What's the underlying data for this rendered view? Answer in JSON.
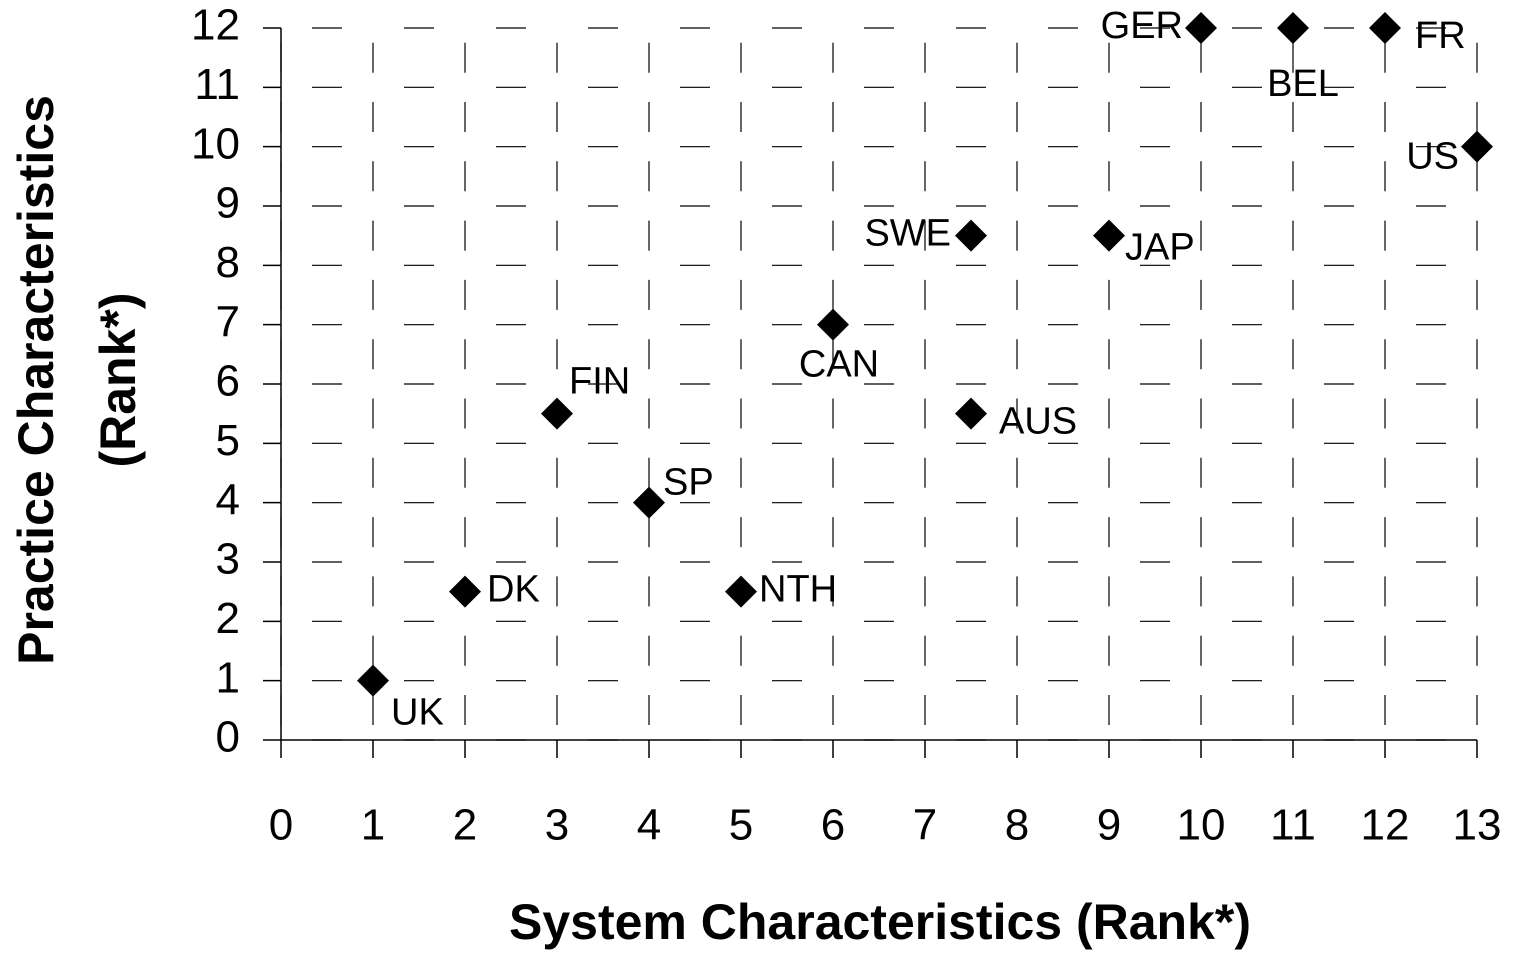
{
  "chart_data": {
    "type": "scatter",
    "xlabel": "System Characteristics (Rank*)",
    "ylabel": [
      "Practice Characteristics",
      "(Rank*)"
    ],
    "x": [
      1,
      2,
      3,
      4,
      5,
      6,
      7.5,
      7.5,
      9,
      10,
      11,
      12,
      13
    ],
    "values": [
      1,
      2.5,
      5.5,
      4,
      2.5,
      7,
      8.5,
      5.5,
      8.5,
      12,
      12,
      12,
      10
    ],
    "point_labels": [
      "UK",
      "DK",
      "FIN",
      "SP",
      "NTH",
      "CAN",
      "SWE",
      "AUS",
      "JAP",
      "GER",
      "BEL",
      "FR",
      "US"
    ],
    "color": "#000000",
    "xlim": [
      0,
      13
    ],
    "xticks": [
      0,
      1,
      2,
      3,
      4,
      5,
      6,
      7,
      8,
      9,
      10,
      11,
      12,
      13
    ],
    "ylim": [
      0,
      12
    ],
    "yticks": [
      0,
      1,
      2,
      3,
      4,
      5,
      6,
      7,
      8,
      9,
      10,
      11,
      12
    ],
    "grid": true
  }
}
